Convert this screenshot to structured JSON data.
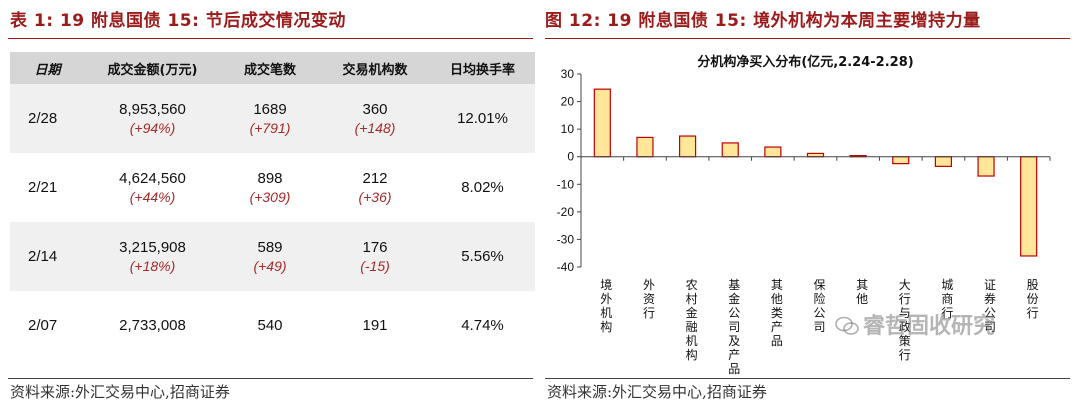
{
  "left": {
    "title": "表 1:  19 附息国债 15:  节后成交情况变动",
    "source": "资料来源:外汇交易中心,招商证券",
    "table": {
      "headers": [
        "日期",
        "成交金额(万元)",
        "成交笔数",
        "交易机构数",
        "日均换手率"
      ],
      "rows": [
        {
          "date": "2/28",
          "amount": "8,953,560",
          "amount_chg": "(+94%)",
          "trades": "1689",
          "trades_chg": "(+791)",
          "institutions": "360",
          "institutions_chg": "(+148)",
          "turnover": "12.01%"
        },
        {
          "date": "2/21",
          "amount": "4,624,560",
          "amount_chg": "(+44%)",
          "trades": "898",
          "trades_chg": "(+309)",
          "institutions": "212",
          "institutions_chg": "(+36)",
          "turnover": "8.02%"
        },
        {
          "date": "2/14",
          "amount": "3,215,908",
          "amount_chg": "(+18%)",
          "trades": "589",
          "trades_chg": "(+49)",
          "institutions": "176",
          "institutions_chg": "(-15)",
          "turnover": "5.56%"
        },
        {
          "date": "2/07",
          "amount": "2,733,008",
          "amount_chg": "",
          "trades": "540",
          "trades_chg": "",
          "institutions": "191",
          "institutions_chg": "",
          "turnover": "4.74%"
        }
      ]
    }
  },
  "right": {
    "title": "图 12:  19 附息国债 15:  境外机构为本周主要增持力量",
    "source": "资料来源:外汇交易中心,招商证券",
    "watermark": "睿哲固收研究"
  },
  "colors": {
    "accent": "#9b1b1b",
    "bar_fill": "#ffe699",
    "bar_stroke": "#c00000",
    "change_text": "#a52a2a"
  },
  "chart_data": {
    "type": "bar",
    "title": "分机构净买入分布(亿元,2.24-2.28)",
    "categories": [
      "境外机构",
      "外资行",
      "农村金融机构",
      "基金公司及产品",
      "其他类产品",
      "保险公司",
      "其他",
      "大行与政策行",
      "城商行",
      "证券公司",
      "股份行"
    ],
    "values": [
      24.5,
      7,
      7.5,
      5,
      3.5,
      1.2,
      0.4,
      -2.5,
      -3.5,
      -7,
      -36
    ],
    "ylim": [
      -40,
      30
    ],
    "yticks": [
      30,
      20,
      10,
      0,
      -10,
      -20,
      -30,
      -40
    ],
    "xlabel": "",
    "ylabel": "",
    "grid": false,
    "legend": "none"
  }
}
